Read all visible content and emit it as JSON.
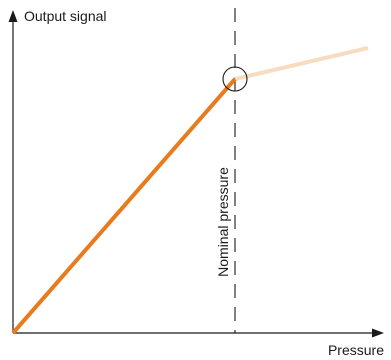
{
  "diagram": {
    "y_axis_label": "Output signal",
    "x_axis_label": "Pressure",
    "nominal_label": "Nominal pressure"
  },
  "colors": {
    "axis": "#1a1a1a",
    "signal_line": "#e87b1e",
    "overrange_line": "#f8dcc0",
    "nominal_marker": "#1a1a1a"
  }
}
